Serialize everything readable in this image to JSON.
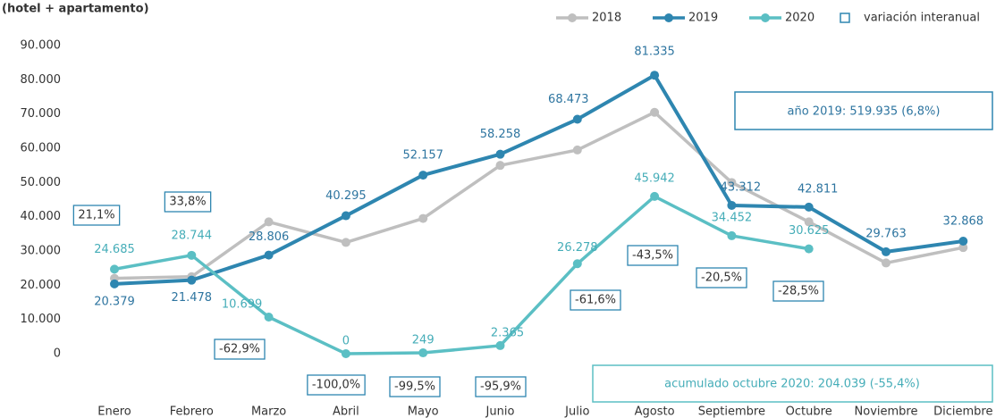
{
  "chart_data": {
    "type": "line",
    "title": "(hotel + apartamento)",
    "categories": [
      "Enero",
      "Febrero",
      "Marzo",
      "Abril",
      "Mayo",
      "Junio",
      "Julio",
      "Agosto",
      "Septiembre",
      "Octubre",
      "Noviembre",
      "Diciembre"
    ],
    "series": [
      {
        "name": "2018",
        "color": "#bfbfbf",
        "values": [
          22000,
          22500,
          38500,
          32500,
          39500,
          55000,
          59500,
          70500,
          50000,
          38500,
          26500,
          31000
        ]
      },
      {
        "name": "2019",
        "color": "#2e86b0",
        "label_color": "#2e75a0",
        "values": [
          20379,
          21478,
          28806,
          40295,
          52157,
          58258,
          68473,
          81335,
          43312,
          42811,
          29763,
          32868
        ],
        "value_labels": [
          "20.379",
          "21.478",
          "28.806",
          "40.295",
          "52.157",
          "58.258",
          "68.473",
          "81.335",
          "43.312",
          "42.811",
          "29.763",
          "32.868"
        ]
      },
      {
        "name": "2020",
        "color": "#5bbfc4",
        "label_color": "#45adb8",
        "values": [
          24685,
          28744,
          10699,
          0,
          249,
          2365,
          26278,
          45942,
          34452,
          30625,
          null,
          null
        ],
        "value_labels": [
          "24.685",
          "28.744",
          "10.699",
          "0",
          "249",
          "2.365",
          "26.278",
          "45.942",
          "34.452",
          "30.625",
          null,
          null
        ]
      }
    ],
    "variation": {
      "name": "variación interanual",
      "color": "#2e86b0",
      "labels": [
        "21,1%",
        "33,8%",
        "-62,9%",
        "-100,0%",
        "-99,5%",
        "-95,9%",
        "-61,6%",
        "-43,5%",
        "-20,5%",
        "-28,5%",
        null,
        null
      ]
    },
    "annotations": [
      "año 2019: 519.935 (6,8%)",
      "acumulado octubre 2020: 204.039 (-55,4%)"
    ],
    "ylim": [
      -15000,
      90000
    ],
    "yticks": [
      {
        "value": 0,
        "label": "0"
      },
      {
        "value": 10000,
        "label": "10.000"
      },
      {
        "value": 20000,
        "label": "20.000"
      },
      {
        "value": 30000,
        "label": "30.000"
      },
      {
        "value": 40000,
        "label": "40.000"
      },
      {
        "value": 50000,
        "label": "50.000"
      },
      {
        "value": 60000,
        "label": "60.000"
      },
      {
        "value": 70000,
        "label": "70.000"
      },
      {
        "value": 80000,
        "label": "80.000"
      },
      {
        "value": 90000,
        "label": "90.000"
      }
    ],
    "grid": false,
    "legend": "top-right"
  }
}
